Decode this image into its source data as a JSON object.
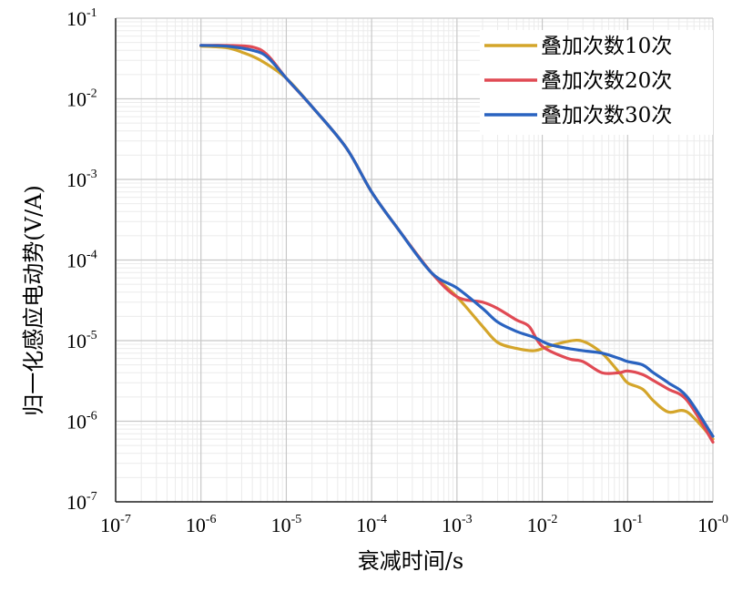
{
  "chart_data": {
    "type": "line",
    "title": "",
    "xlabel": "衰减时间/s",
    "ylabel": "归一化感应电动势(V/A)",
    "xscale": "log",
    "yscale": "log",
    "xlim": [
      1e-07,
      1
    ],
    "ylim": [
      1e-07,
      0.1
    ],
    "x_ticks": [
      {
        "base": "10",
        "exp": "-7",
        "value": 1e-07
      },
      {
        "base": "10",
        "exp": "-6",
        "value": 1e-06
      },
      {
        "base": "10",
        "exp": "-5",
        "value": 1e-05
      },
      {
        "base": "10",
        "exp": "-4",
        "value": 0.0001
      },
      {
        "base": "10",
        "exp": "-3",
        "value": 0.001
      },
      {
        "base": "10",
        "exp": "-2",
        "value": 0.01
      },
      {
        "base": "10",
        "exp": "-1",
        "value": 0.1
      },
      {
        "base": "10",
        "exp": "-0",
        "value": 1
      }
    ],
    "y_ticks": [
      {
        "base": "10",
        "exp": "-7",
        "value": 1e-07
      },
      {
        "base": "10",
        "exp": "-6",
        "value": 1e-06
      },
      {
        "base": "10",
        "exp": "-5",
        "value": 1e-05
      },
      {
        "base": "10",
        "exp": "-4",
        "value": 0.0001
      },
      {
        "base": "10",
        "exp": "-3",
        "value": 0.001
      },
      {
        "base": "10",
        "exp": "-2",
        "value": 0.01
      },
      {
        "base": "10",
        "exp": "-1",
        "value": 0.1
      }
    ],
    "grid": true,
    "legend": "top-right",
    "series": [
      {
        "name": "叠加次数10次",
        "color": "#d4a52a",
        "x": [
          1e-06,
          2e-06,
          3e-06,
          5e-06,
          1e-05,
          2e-05,
          5e-05,
          0.0001,
          0.0002,
          0.0005,
          0.001,
          0.002,
          0.003,
          0.005,
          0.008,
          0.012,
          0.02,
          0.03,
          0.05,
          0.08,
          0.1,
          0.15,
          0.2,
          0.3,
          0.5,
          1
        ],
        "y": [
          0.045,
          0.043,
          0.038,
          0.03,
          0.018,
          0.008,
          0.0025,
          0.0007,
          0.00025,
          7e-05,
          3.5e-05,
          1.5e-05,
          9.5e-06,
          8e-06,
          7.5e-06,
          8.5e-06,
          9.8e-06,
          9.8e-06,
          7e-06,
          4e-06,
          3e-06,
          2.5e-06,
          1.8e-06,
          1.3e-06,
          1.3e-06,
          6e-07
        ]
      },
      {
        "name": "叠加次数20次",
        "color": "#e04a54",
        "x": [
          1e-06,
          2e-06,
          4e-06,
          6e-06,
          1e-05,
          2e-05,
          5e-05,
          0.0001,
          0.0002,
          0.0005,
          0.001,
          0.002,
          0.003,
          0.005,
          0.007,
          0.01,
          0.02,
          0.03,
          0.05,
          0.08,
          0.1,
          0.15,
          0.2,
          0.3,
          0.5,
          1
        ],
        "y": [
          0.046,
          0.046,
          0.044,
          0.035,
          0.018,
          0.008,
          0.0025,
          0.0007,
          0.00025,
          7e-05,
          3.5e-05,
          3e-05,
          2.5e-05,
          1.8e-05,
          1.5e-05,
          8.5e-06,
          6e-06,
          5.5e-06,
          4e-06,
          4e-06,
          4.2e-06,
          3.8e-06,
          3.2e-06,
          2.5e-06,
          1.8e-06,
          5.5e-07
        ]
      },
      {
        "name": "叠加次数30次",
        "color": "#2a63c0",
        "x": [
          1e-06,
          2e-06,
          4e-06,
          6e-06,
          1e-05,
          2e-05,
          5e-05,
          0.0001,
          0.0002,
          0.0005,
          0.001,
          0.002,
          0.003,
          0.005,
          0.008,
          0.012,
          0.02,
          0.03,
          0.05,
          0.08,
          0.1,
          0.15,
          0.2,
          0.3,
          0.5,
          1
        ],
        "y": [
          0.046,
          0.045,
          0.04,
          0.033,
          0.018,
          0.008,
          0.0025,
          0.0007,
          0.00025,
          7e-05,
          4.5e-05,
          2.5e-05,
          1.7e-05,
          1.3e-05,
          1.1e-05,
          9e-06,
          8e-06,
          7.5e-06,
          7e-06,
          6e-06,
          5.5e-06,
          5e-06,
          4e-06,
          3e-06,
          2e-06,
          6.5e-07
        ]
      }
    ]
  }
}
